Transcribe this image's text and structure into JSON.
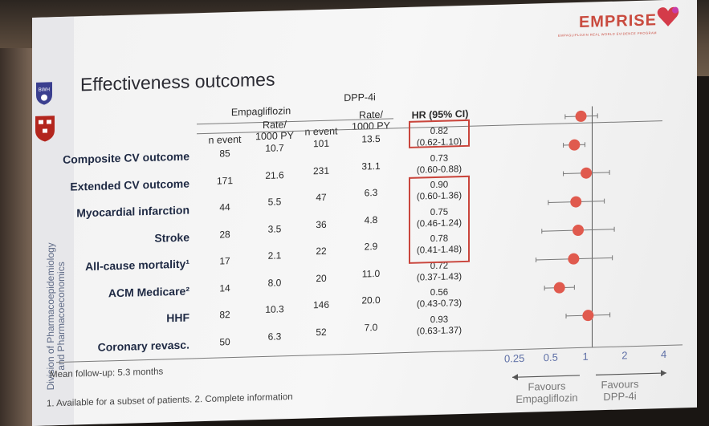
{
  "brand": {
    "name": "EMPRISE",
    "tagline": "EMPAGLIFLOZIN REAL WORLD EVIDENCE PROGRAM"
  },
  "logos": {
    "bwh": "BWH"
  },
  "title": "Effectiveness outcomes",
  "sidebar_text": [
    "Division of Pharmacoepidemiology",
    "and Pharmacoeconomics"
  ],
  "headers": {
    "group1": "Empagliflozin",
    "group2": "DPP-4i",
    "n_event": "n event",
    "rate": "Rate/",
    "rate2": "1000 PY",
    "hr": "HR (95% CI)"
  },
  "rows": [
    {
      "label": "Composite CV outcome",
      "emp_n": "85",
      "emp_rate": "10.7",
      "dpp_n": "101",
      "dpp_rate": "13.5",
      "hr": "0.82",
      "ci": "(0.62-1.10)"
    },
    {
      "label": "Extended CV outcome",
      "emp_n": "171",
      "emp_rate": "21.6",
      "dpp_n": "231",
      "dpp_rate": "31.1",
      "hr": "0.73",
      "ci": "(0.60-0.88)"
    },
    {
      "label": "Myocardial infarction",
      "emp_n": "44",
      "emp_rate": "5.5",
      "dpp_n": "47",
      "dpp_rate": "6.3",
      "hr": "0.90",
      "ci": "(0.60-1.36)"
    },
    {
      "label": "Stroke",
      "emp_n": "28",
      "emp_rate": "3.5",
      "dpp_n": "36",
      "dpp_rate": "4.8",
      "hr": "0.75",
      "ci": "(0.46-1.24)"
    },
    {
      "label": "All-cause mortality¹",
      "emp_n": "17",
      "emp_rate": "2.1",
      "dpp_n": "22",
      "dpp_rate": "2.9",
      "hr": "0.78",
      "ci": "(0.41-1.48)"
    },
    {
      "label": "ACM Medicare²",
      "emp_n": "14",
      "emp_rate": "8.0",
      "dpp_n": "20",
      "dpp_rate": "11.0",
      "hr": "0.72",
      "ci": "(0.37-1.43)"
    },
    {
      "label": "HHF",
      "emp_n": "82",
      "emp_rate": "10.3",
      "dpp_n": "146",
      "dpp_rate": "20.0",
      "hr": "0.56",
      "ci": "(0.43-0.73)"
    },
    {
      "label": "Coronary revasc.",
      "emp_n": "50",
      "emp_rate": "6.3",
      "dpp_n": "52",
      "dpp_rate": "7.0",
      "hr": "0.93",
      "ci": "(0.63-1.37)"
    }
  ],
  "forest": {
    "points": [
      {
        "hr": 0.82,
        "lo": 0.62,
        "hi": 1.1
      },
      {
        "hr": 0.73,
        "lo": 0.6,
        "hi": 0.88
      },
      {
        "hr": 0.9,
        "lo": 0.6,
        "hi": 1.36
      },
      {
        "hr": 0.75,
        "lo": 0.46,
        "hi": 1.24
      },
      {
        "hr": 0.78,
        "lo": 0.41,
        "hi": 1.48
      },
      {
        "hr": 0.72,
        "lo": 0.37,
        "hi": 1.43
      },
      {
        "hr": 0.56,
        "lo": 0.43,
        "hi": 0.73
      },
      {
        "hr": 0.93,
        "lo": 0.63,
        "hi": 1.37
      }
    ],
    "ticks": [
      "0.25",
      "0.5",
      "1",
      "2",
      "4"
    ],
    "tick_values": [
      0.25,
      0.5,
      1,
      2,
      4
    ],
    "scale": "log",
    "marker_color": "#e05a4e"
  },
  "footer": {
    "followup": "Mean follow-up: 5.3 months",
    "notes": "1. Available for a subset of patients. 2. Complete information",
    "favours_left": [
      "Favours",
      "Empagliflozin"
    ],
    "favours_right": [
      "Favours",
      "DPP-4i"
    ]
  }
}
